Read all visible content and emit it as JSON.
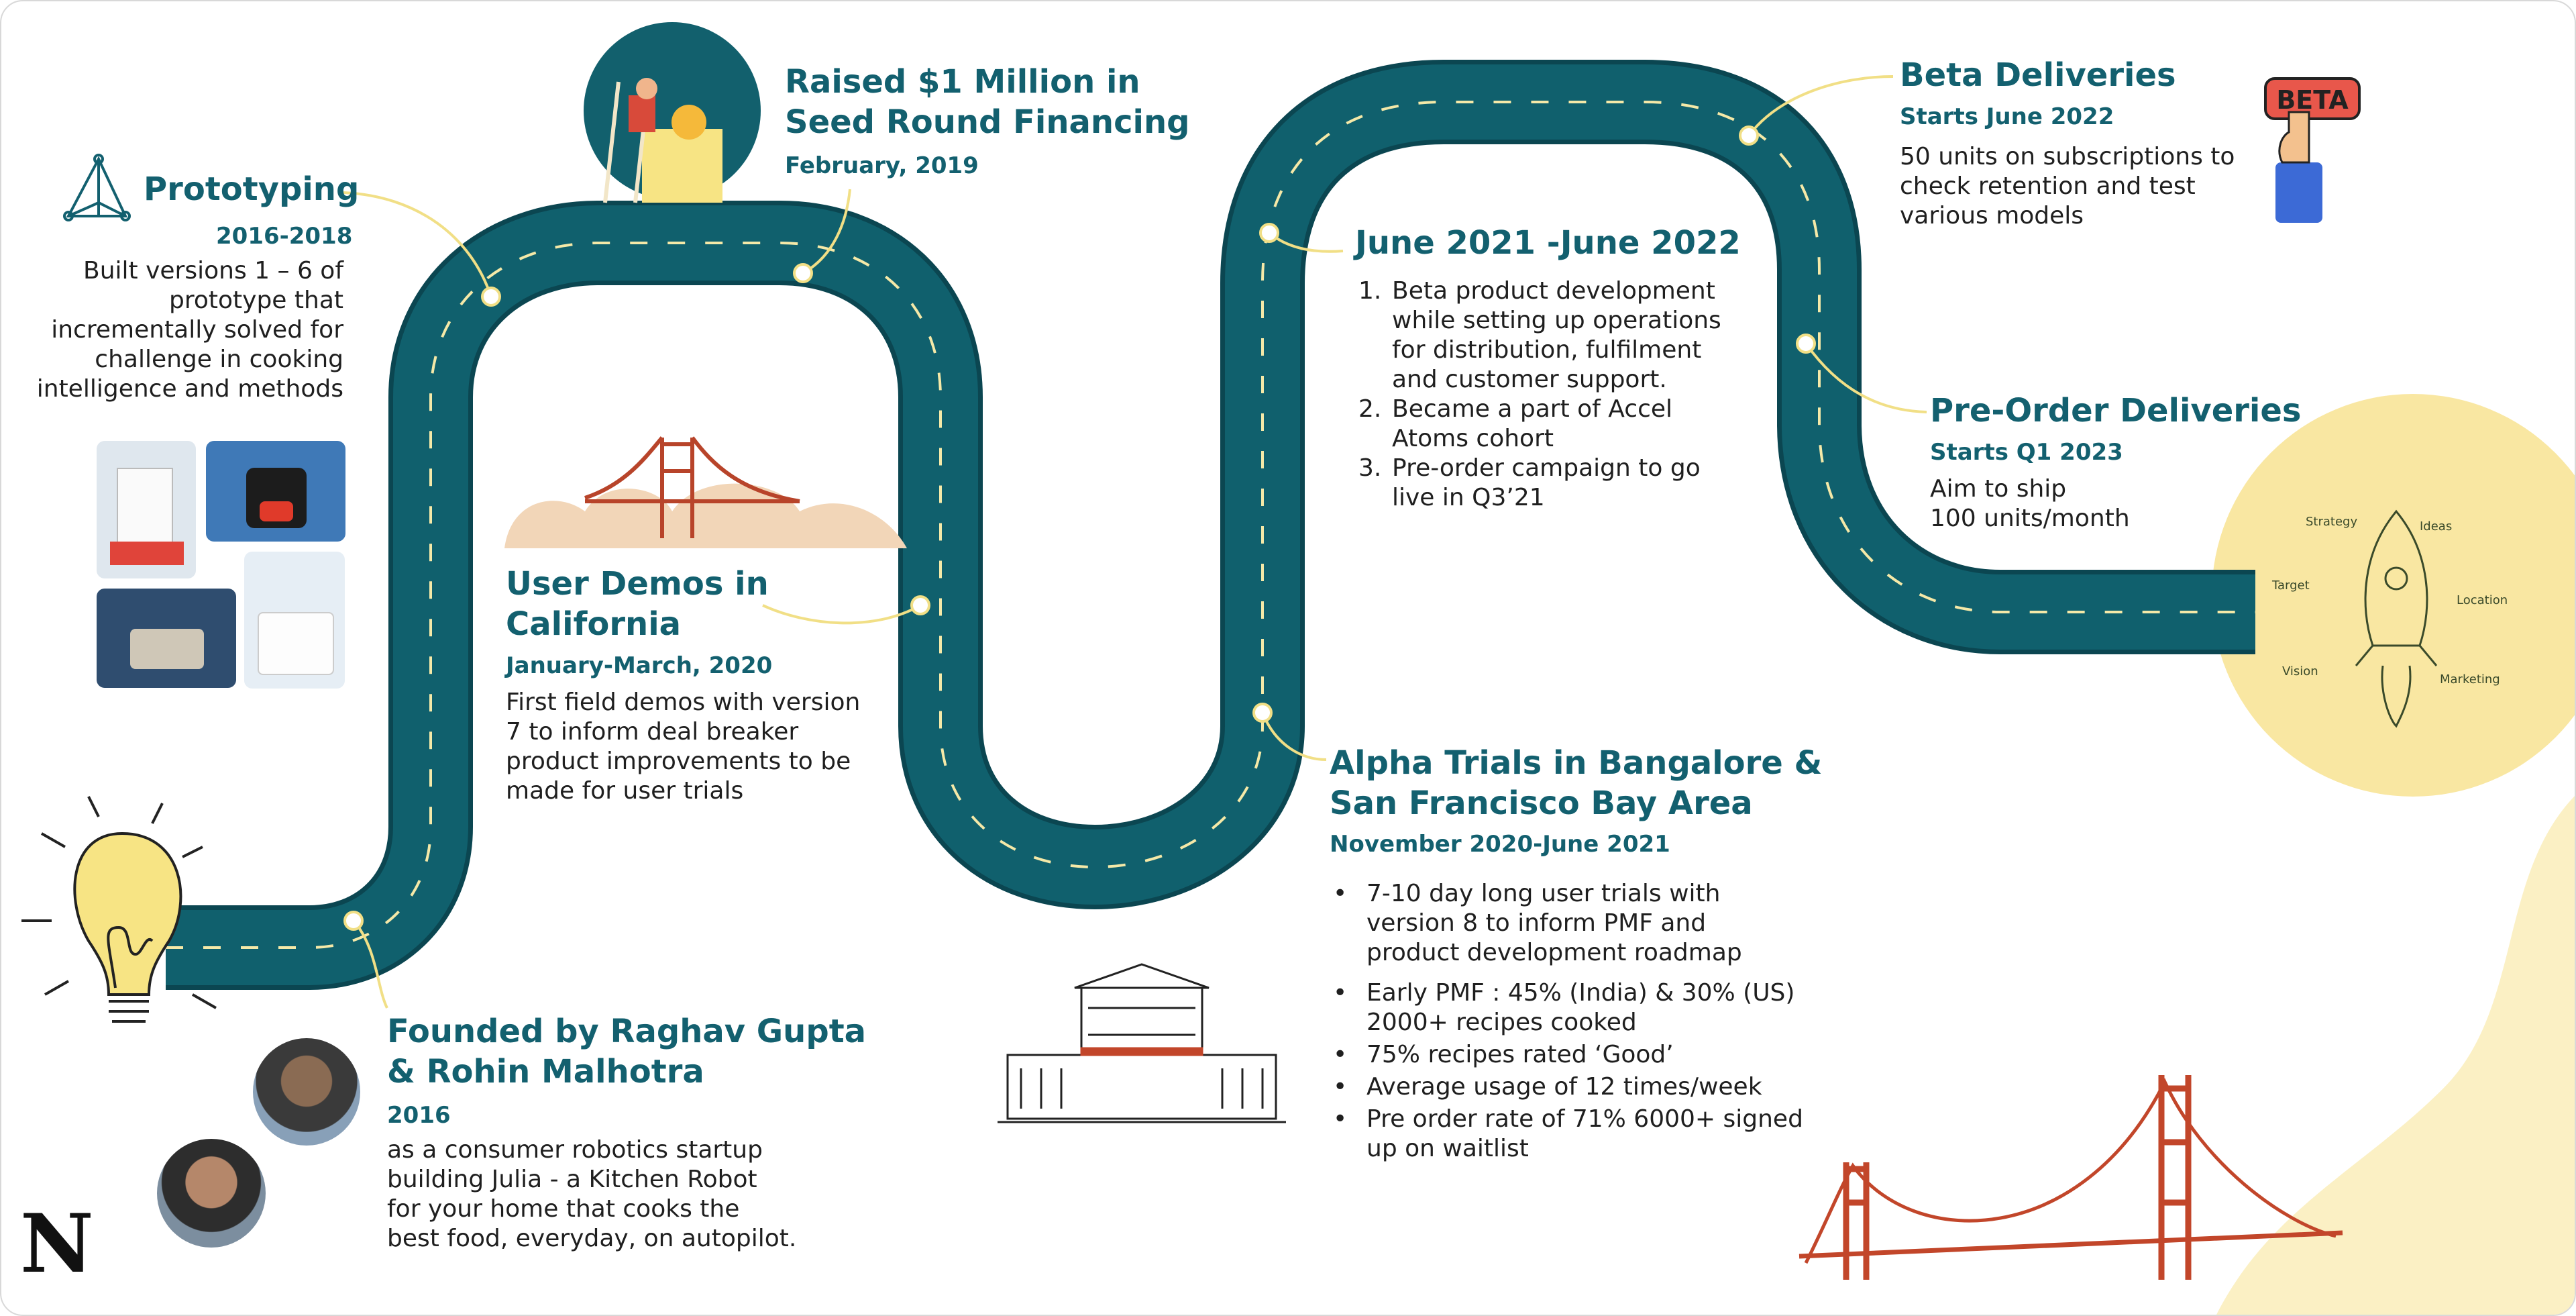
{
  "logo_letter": "N",
  "milestones": {
    "prototyping": {
      "title": "Prototyping",
      "date": "2016-2018",
      "lines": [
        "Built versions 1 – 6 of",
        "prototype that",
        "incrementally solved for",
        "challenge in cooking",
        "intelligence and methods"
      ]
    },
    "seed": {
      "title_lines": [
        "Raised $1 Million in",
        "Seed Round Financing"
      ],
      "date": "February, 2019"
    },
    "user_demos": {
      "title_lines": [
        "User Demos in",
        "California"
      ],
      "date": "January-March, 2020",
      "lines": [
        "First field demos with version",
        "7 to inform deal breaker",
        "product improvements to be",
        "made for user trials"
      ]
    },
    "founded": {
      "title_lines": [
        "Founded by Raghav Gupta",
        "& Rohin Malhotra"
      ],
      "date": "2016",
      "lines": [
        "as a consumer robotics startup",
        "building Julia - a Kitchen Robot",
        "for your home that cooks the",
        "best food, everyday, on autopilot."
      ]
    },
    "beta_dev": {
      "title": "June 2021 -June 2022",
      "items": [
        {
          "num": "1.",
          "lines": [
            "Beta product development",
            "while setting up operations",
            "for distribution, fulfilment",
            "and customer support."
          ]
        },
        {
          "num": "2.",
          "lines": [
            "Became a part of Accel",
            "Atoms cohort"
          ]
        },
        {
          "num": "3.",
          "lines": [
            "Pre-order campaign to go",
            "live in Q3’21"
          ]
        }
      ]
    },
    "alpha": {
      "title_lines": [
        "Alpha Trials in Bangalore &",
        "San Francisco Bay Area"
      ],
      "date": "November 2020-June 2021",
      "bullets": [
        {
          "mark": "•",
          "lines": [
            "7-10 day long user trials with",
            "version 8 to inform PMF and",
            "product development roadmap"
          ]
        },
        {
          "mark": "•",
          "lines": [
            "Early PMF : 45% (India) & 30% (US)",
            "2000+ recipes cooked"
          ]
        },
        {
          "mark": "•",
          "lines": [
            "75% recipes rated ‘Good’"
          ]
        },
        {
          "mark": "•",
          "lines": [
            "Average usage of 12 times/week"
          ]
        },
        {
          "mark": "•",
          "lines": [
            "Pre order rate of 71%  6000+ signed",
            "up on waitlist"
          ]
        }
      ]
    },
    "beta_deliveries": {
      "title": "Beta Deliveries",
      "date": "Starts June 2022",
      "lines": [
        "50 units on subscriptions to",
        "check retention and test",
        "various models"
      ]
    },
    "preorder": {
      "title": "Pre-Order Deliveries",
      "date": "Starts Q1 2023",
      "lines": [
        "Aim to ship",
        "100 units/month"
      ]
    }
  },
  "beta_badge": "BETA",
  "rocket_labels": {
    "strategy": "Strategy",
    "ideas": "Ideas",
    "target": "Target",
    "location": "Location",
    "vision": "Vision",
    "marketing": "Marketing"
  },
  "colors": {
    "road": "#10606d",
    "road_outline": "#0b4651",
    "dash": "#f5e9a8",
    "accent_text": "#13606f",
    "connector": "#f1df86",
    "yellow_blob": "#f8e7a3",
    "bridge": "#c2462a"
  }
}
